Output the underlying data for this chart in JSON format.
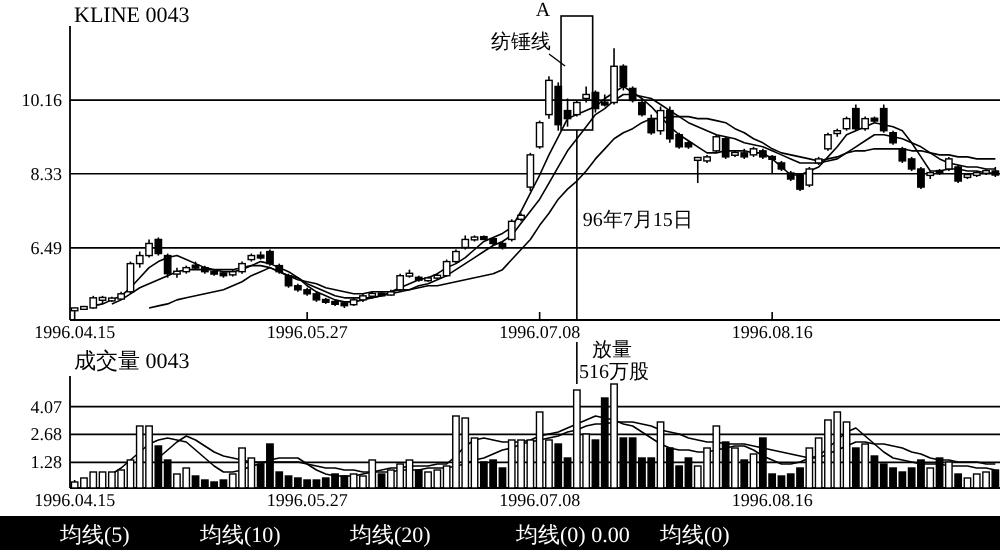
{
  "chart_data": [
    {
      "type": "candlestick",
      "title": "KLINE 0043",
      "categories": [
        "1996.04.15",
        null,
        null,
        null,
        null,
        null,
        null,
        null,
        null,
        null,
        null,
        null,
        null,
        null,
        null,
        null,
        null,
        null,
        null,
        null,
        null,
        null,
        null,
        null,
        null,
        "1996.05.27",
        null,
        null,
        null,
        null,
        null,
        null,
        null,
        null,
        null,
        null,
        null,
        null,
        null,
        null,
        null,
        null,
        null,
        null,
        null,
        null,
        null,
        null,
        null,
        null,
        "1996.07.08",
        null,
        null,
        null,
        null,
        null,
        null,
        null,
        null,
        null,
        null,
        null,
        null,
        null,
        null,
        null,
        null,
        null,
        null,
        null,
        null,
        null,
        null,
        null,
        null,
        "1996.08.16",
        null,
        null,
        null,
        null,
        null,
        null,
        null,
        null,
        null,
        null,
        null,
        null,
        null,
        null,
        null,
        null,
        null,
        null,
        null,
        null,
        null,
        null,
        null,
        null
      ],
      "ohlc": [
        [
          4.95,
          5.0,
          4.9,
          4.98
        ],
        [
          4.98,
          5.05,
          4.95,
          5.02
        ],
        [
          5.0,
          5.3,
          4.98,
          5.25
        ],
        [
          5.2,
          5.3,
          5.1,
          5.25
        ],
        [
          5.2,
          5.28,
          5.15,
          5.22
        ],
        [
          5.22,
          5.4,
          5.2,
          5.35
        ],
        [
          5.4,
          6.15,
          5.35,
          6.1
        ],
        [
          6.1,
          6.4,
          6.0,
          6.3
        ],
        [
          6.3,
          6.7,
          6.25,
          6.6
        ],
        [
          6.7,
          6.75,
          6.3,
          6.35
        ],
        [
          6.3,
          6.35,
          5.75,
          5.85
        ],
        [
          5.85,
          6.0,
          5.75,
          5.9
        ],
        [
          5.9,
          6.05,
          5.85,
          6.0
        ],
        [
          6.05,
          6.15,
          5.95,
          6.0
        ],
        [
          6.0,
          6.05,
          5.85,
          5.9
        ],
        [
          5.9,
          5.95,
          5.8,
          5.85
        ],
        [
          5.85,
          5.9,
          5.75,
          5.82
        ],
        [
          5.82,
          5.95,
          5.78,
          5.9
        ],
        [
          5.9,
          6.15,
          5.85,
          6.1
        ],
        [
          6.2,
          6.35,
          6.15,
          6.3
        ],
        [
          6.3,
          6.4,
          6.2,
          6.25
        ],
        [
          6.4,
          6.45,
          6.05,
          6.1
        ],
        [
          6.05,
          6.1,
          5.85,
          5.9
        ],
        [
          5.8,
          5.85,
          5.5,
          5.55
        ],
        [
          5.55,
          5.6,
          5.4,
          5.45
        ],
        [
          5.45,
          5.5,
          5.3,
          5.35
        ],
        [
          5.35,
          5.4,
          5.15,
          5.2
        ],
        [
          5.2,
          5.25,
          5.1,
          5.15
        ],
        [
          5.15,
          5.2,
          5.05,
          5.1
        ],
        [
          5.1,
          5.15,
          5.0,
          5.08
        ],
        [
          5.08,
          5.25,
          5.05,
          5.2
        ],
        [
          5.2,
          5.35,
          5.15,
          5.3
        ],
        [
          5.3,
          5.4,
          5.25,
          5.35
        ],
        [
          5.35,
          5.4,
          5.3,
          5.32
        ],
        [
          5.32,
          5.45,
          5.3,
          5.4
        ],
        [
          5.45,
          5.85,
          5.4,
          5.8
        ],
        [
          5.8,
          5.95,
          5.75,
          5.85
        ],
        [
          5.75,
          5.8,
          5.65,
          5.7
        ],
        [
          5.7,
          5.78,
          5.65,
          5.72
        ],
        [
          5.75,
          5.85,
          5.7,
          5.8
        ],
        [
          5.8,
          6.2,
          5.78,
          6.15
        ],
        [
          6.15,
          6.45,
          6.1,
          6.4
        ],
        [
          6.5,
          6.8,
          6.45,
          6.7
        ],
        [
          6.7,
          6.8,
          6.65,
          6.75
        ],
        [
          6.75,
          6.8,
          6.7,
          6.72
        ],
        [
          6.72,
          6.75,
          6.55,
          6.6
        ],
        [
          6.6,
          6.65,
          6.45,
          6.5
        ],
        [
          6.7,
          7.2,
          6.65,
          7.15
        ],
        [
          7.2,
          7.35,
          7.15,
          7.3
        ],
        [
          8.0,
          8.85,
          7.9,
          8.8
        ],
        [
          9.0,
          9.65,
          8.95,
          9.6
        ],
        [
          9.8,
          10.75,
          9.7,
          10.65
        ],
        [
          10.5,
          10.6,
          9.4,
          9.55
        ],
        [
          9.9,
          10.2,
          9.5,
          9.7
        ],
        [
          9.8,
          10.15,
          9.75,
          10.1
        ],
        [
          10.2,
          10.5,
          10.1,
          10.3
        ],
        [
          10.35,
          10.4,
          9.85,
          9.95
        ],
        [
          10.1,
          10.3,
          10.0,
          10.05
        ],
        [
          10.1,
          11.45,
          10.05,
          11.0
        ],
        [
          11.0,
          11.05,
          10.4,
          10.5
        ],
        [
          10.45,
          10.5,
          10.1,
          10.15
        ],
        [
          10.1,
          10.2,
          9.75,
          9.8
        ],
        [
          9.7,
          9.8,
          9.3,
          9.35
        ],
        [
          9.4,
          10.0,
          9.3,
          9.9
        ],
        [
          9.9,
          10.0,
          9.1,
          9.2
        ],
        [
          9.3,
          9.35,
          8.95,
          9.0
        ],
        [
          9.1,
          9.15,
          8.95,
          9.0
        ],
        [
          8.7,
          8.75,
          8.1,
          8.7
        ],
        [
          8.65,
          8.8,
          8.6,
          8.75
        ],
        [
          8.9,
          9.3,
          8.85,
          9.25
        ],
        [
          9.2,
          9.25,
          8.7,
          8.75
        ],
        [
          8.8,
          8.9,
          8.75,
          8.85
        ],
        [
          8.85,
          8.95,
          8.7,
          8.75
        ],
        [
          8.8,
          9.0,
          8.75,
          8.95
        ],
        [
          8.9,
          8.95,
          8.7,
          8.75
        ],
        [
          8.75,
          8.8,
          8.35,
          8.7
        ],
        [
          8.6,
          8.65,
          8.4,
          8.45
        ],
        [
          8.35,
          8.4,
          8.15,
          8.2
        ],
        [
          8.3,
          8.35,
          7.9,
          7.95
        ],
        [
          8.05,
          8.5,
          8.0,
          8.45
        ],
        [
          8.6,
          8.75,
          8.55,
          8.7
        ],
        [
          8.95,
          9.35,
          8.9,
          9.3
        ],
        [
          9.35,
          9.45,
          9.25,
          9.38
        ],
        [
          9.45,
          9.75,
          9.4,
          9.7
        ],
        [
          9.95,
          10.05,
          9.4,
          9.45
        ],
        [
          9.45,
          9.75,
          9.4,
          9.7
        ],
        [
          9.7,
          9.75,
          9.6,
          9.65
        ],
        [
          9.95,
          10.05,
          9.35,
          9.4
        ],
        [
          9.35,
          9.4,
          9.05,
          9.1
        ],
        [
          8.95,
          9.0,
          8.6,
          8.65
        ],
        [
          8.7,
          8.75,
          8.4,
          8.45
        ],
        [
          8.45,
          8.5,
          7.95,
          8.0
        ],
        [
          8.3,
          8.4,
          8.2,
          8.35
        ],
        [
          8.4,
          8.45,
          8.3,
          8.35
        ],
        [
          8.45,
          8.75,
          8.4,
          8.7
        ],
        [
          8.5,
          8.55,
          8.1,
          8.15
        ],
        [
          8.25,
          8.35,
          8.2,
          8.3
        ],
        [
          8.3,
          8.4,
          8.25,
          8.35
        ],
        [
          8.35,
          8.45,
          8.3,
          8.4
        ],
        [
          8.4,
          8.5,
          8.25,
          8.3
        ]
      ],
      "series": [
        {
          "type": "line",
          "color": "#000000",
          "values": [
            null,
            null,
            5.05,
            5.1,
            5.2,
            5.3,
            5.5,
            5.75,
            6.0,
            6.15,
            6.25,
            6.3,
            6.2,
            6.1,
            6.0,
            5.95,
            5.9,
            5.9,
            5.95,
            6.05,
            6.15,
            6.1,
            6.0,
            5.9,
            5.75,
            5.55,
            5.4,
            5.3,
            5.2,
            5.15,
            5.15,
            5.2,
            5.25,
            5.3,
            5.4,
            5.5,
            5.6,
            5.7,
            5.75,
            5.85,
            6.0,
            6.1,
            6.25,
            6.45,
            6.65,
            6.75,
            6.85,
            7.0,
            7.4,
            7.85,
            8.3,
            8.8,
            9.25,
            9.7,
            9.8,
            9.9,
            10.0,
            10.2,
            10.35,
            10.5,
            10.35,
            10.2,
            10.0,
            9.75,
            9.5,
            9.3,
            9.15,
            9.0,
            8.85,
            8.85,
            8.9,
            8.9,
            8.9,
            8.85,
            8.85,
            8.7,
            8.5,
            8.3,
            8.3,
            8.4,
            8.5,
            8.75,
            9.0,
            9.3,
            9.4,
            9.5,
            9.6,
            9.55,
            9.5,
            9.4,
            9.1,
            8.75,
            8.4,
            8.4,
            8.45,
            8.45,
            8.4,
            8.4,
            8.35,
            8.35
          ]
        },
        {
          "type": "line",
          "color": "#000000",
          "values": [
            null,
            null,
            null,
            null,
            5.1,
            5.2,
            5.35,
            5.5,
            5.6,
            5.7,
            5.8,
            5.9,
            5.95,
            5.95,
            5.95,
            5.95,
            5.95,
            5.95,
            6.0,
            6.05,
            6.05,
            6.0,
            5.9,
            5.8,
            5.75,
            5.6,
            5.5,
            5.4,
            5.3,
            5.25,
            5.25,
            5.25,
            5.25,
            5.3,
            5.35,
            5.4,
            5.45,
            5.55,
            5.6,
            5.7,
            5.8,
            5.95,
            6.1,
            6.25,
            6.4,
            6.55,
            6.65,
            6.8,
            7.1,
            7.4,
            7.7,
            8.1,
            8.5,
            8.9,
            9.2,
            9.5,
            9.8,
            9.95,
            10.15,
            10.3,
            10.3,
            10.25,
            10.2,
            10.05,
            9.9,
            9.75,
            9.6,
            9.5,
            9.4,
            9.3,
            9.25,
            9.2,
            9.1,
            9.05,
            9.0,
            8.9,
            8.8,
            8.7,
            8.6,
            8.6,
            8.6,
            8.65,
            8.7,
            8.85,
            9.0,
            9.15,
            9.3,
            9.3,
            9.25,
            9.2,
            9.1,
            9.0,
            8.85,
            8.7,
            8.6,
            8.55,
            8.5,
            8.5,
            8.45,
            8.45
          ]
        },
        {
          "type": "line",
          "color": "#000000",
          "values": [
            null,
            null,
            null,
            null,
            null,
            null,
            null,
            null,
            5.0,
            5.05,
            5.1,
            5.2,
            5.25,
            5.3,
            5.35,
            5.4,
            5.45,
            5.55,
            5.65,
            5.8,
            5.9,
            6.0,
            5.9,
            5.8,
            5.7,
            5.65,
            5.6,
            5.5,
            5.45,
            5.4,
            5.35,
            5.35,
            5.4,
            5.4,
            5.4,
            5.45,
            5.45,
            5.5,
            5.55,
            5.55,
            5.6,
            5.65,
            5.7,
            5.75,
            5.8,
            5.85,
            5.95,
            6.2,
            6.45,
            6.7,
            7.05,
            7.35,
            7.7,
            7.95,
            8.15,
            8.4,
            8.7,
            8.95,
            9.2,
            9.35,
            9.45,
            9.6,
            9.7,
            9.7,
            9.75,
            9.75,
            9.75,
            9.7,
            9.7,
            9.65,
            9.6,
            9.45,
            9.35,
            9.2,
            9.1,
            8.95,
            8.85,
            8.8,
            8.75,
            8.7,
            8.65,
            8.7,
            8.75,
            8.85,
            8.9,
            8.9,
            8.95,
            8.95,
            8.95,
            8.95,
            8.9,
            8.9,
            8.85,
            8.8,
            8.8,
            8.75,
            8.75,
            8.7,
            8.7,
            8.7
          ]
        }
      ],
      "ylim": [
        4.7,
        12.0
      ],
      "yticks": [
        6.49,
        8.33,
        10.16
      ],
      "grid": "y",
      "annotations": [
        "A",
        "纺锤线",
        "96年7月15日"
      ]
    },
    {
      "type": "bar",
      "title": "成交量 0043",
      "categories": [
        "1996.04.15",
        null,
        null,
        null,
        null,
        null,
        null,
        null,
        null,
        null,
        null,
        null,
        null,
        null,
        null,
        null,
        null,
        null,
        null,
        null,
        null,
        null,
        null,
        null,
        null,
        "1996.05.27",
        null,
        null,
        null,
        null,
        null,
        null,
        null,
        null,
        null,
        null,
        null,
        null,
        null,
        null,
        null,
        null,
        null,
        null,
        null,
        null,
        null,
        null,
        null,
        null,
        "1996.07.08",
        null,
        null,
        null,
        null,
        null,
        null,
        null,
        null,
        null,
        null,
        null,
        null,
        null,
        null,
        null,
        null,
        null,
        null,
        null,
        null,
        null,
        null,
        null,
        null,
        "1996.08.16",
        null,
        null,
        null,
        null,
        null,
        null,
        null,
        null,
        null,
        null,
        null,
        null,
        null,
        null,
        null,
        null,
        null,
        null,
        null,
        null,
        null,
        null,
        null,
        null
      ],
      "values": [
        0.3,
        0.5,
        0.8,
        0.8,
        0.8,
        0.9,
        1.4,
        3.1,
        3.1,
        2.1,
        1.4,
        0.7,
        1.0,
        0.6,
        0.4,
        0.3,
        0.4,
        0.7,
        2.0,
        1.5,
        1.2,
        2.2,
        0.8,
        0.6,
        0.5,
        0.4,
        0.4,
        0.5,
        0.7,
        0.6,
        0.7,
        0.6,
        1.4,
        0.7,
        0.9,
        1.2,
        1.4,
        0.9,
        0.8,
        0.9,
        1.1,
        3.6,
        3.5,
        2.5,
        1.3,
        1.4,
        1.0,
        2.4,
        2.4,
        2.4,
        3.8,
        2.4,
        2.2,
        1.5,
        4.9,
        2.7,
        2.4,
        4.5,
        5.2,
        2.5,
        2.5,
        1.5,
        1.5,
        3.3,
        2.0,
        1.1,
        1.5,
        1.1,
        2.0,
        3.1,
        2.3,
        2.0,
        1.4,
        1.7,
        2.5,
        0.7,
        0.6,
        0.7,
        1.0,
        2.0,
        2.5,
        3.4,
        3.8,
        3.3,
        2.0,
        2.2,
        1.6,
        1.2,
        1.0,
        0.8,
        1.0,
        1.4,
        1.0,
        1.5,
        1.3,
        0.7,
        0.5,
        0.7,
        0.8,
        0.9
      ],
      "colors": [
        "#ffffff",
        "#ffffff",
        "#ffffff",
        "#ffffff",
        "#ffffff",
        "#ffffff",
        "#ffffff",
        "#ffffff",
        "#ffffff",
        "#000000",
        "#000000",
        "#ffffff",
        "#ffffff",
        "#000000",
        "#000000",
        "#000000",
        "#000000",
        "#ffffff",
        "#ffffff",
        "#ffffff",
        "#000000",
        "#000000",
        "#000000",
        "#000000",
        "#000000",
        "#000000",
        "#000000",
        "#000000",
        "#000000",
        "#000000",
        "#ffffff",
        "#ffffff",
        "#ffffff",
        "#000000",
        "#ffffff",
        "#ffffff",
        "#ffffff",
        "#000000",
        "#ffffff",
        "#ffffff",
        "#ffffff",
        "#ffffff",
        "#ffffff",
        "#ffffff",
        "#000000",
        "#000000",
        "#000000",
        "#ffffff",
        "#ffffff",
        "#ffffff",
        "#ffffff",
        "#ffffff",
        "#000000",
        "#000000",
        "#ffffff",
        "#ffffff",
        "#000000",
        "#000000",
        "#ffffff",
        "#000000",
        "#000000",
        "#000000",
        "#000000",
        "#ffffff",
        "#000000",
        "#000000",
        "#000000",
        "#ffffff",
        "#ffffff",
        "#ffffff",
        "#000000",
        "#ffffff",
        "#000000",
        "#ffffff",
        "#000000",
        "#000000",
        "#000000",
        "#000000",
        "#000000",
        "#ffffff",
        "#ffffff",
        "#ffffff",
        "#ffffff",
        "#ffffff",
        "#000000",
        "#ffffff",
        "#000000",
        "#000000",
        "#000000",
        "#000000",
        "#000000",
        "#000000",
        "#ffffff",
        "#000000",
        "#ffffff",
        "#000000",
        "#ffffff",
        "#ffffff",
        "#ffffff",
        "#000000"
      ],
      "series": [
        {
          "type": "line",
          "color": "#000000",
          "values": [
            null,
            null,
            null,
            null,
            0.7,
            1.0,
            1.4,
            1.8,
            2.2,
            2.4,
            2.5,
            2.4,
            2.3,
            1.9,
            1.5,
            1.1,
            0.8,
            0.8,
            0.9,
            1.1,
            1.2,
            1.4,
            1.5,
            1.5,
            1.5,
            1.2,
            0.9,
            0.7,
            0.6,
            0.6,
            0.6,
            0.7,
            0.8,
            0.9,
            1.0,
            1.0,
            1.1,
            1.1,
            1.1,
            1.2,
            1.2,
            1.6,
            2.1,
            2.4,
            2.5,
            2.4,
            2.3,
            2.3,
            2.3,
            2.4,
            2.6,
            2.7,
            2.8,
            3.0,
            3.2,
            3.4,
            3.6,
            3.5,
            3.4,
            3.2,
            3.1,
            2.8,
            2.5,
            2.2,
            2.0,
            1.9,
            1.9,
            1.8,
            1.8,
            1.9,
            2.0,
            2.1,
            2.1,
            1.9,
            1.6,
            1.4,
            1.2,
            1.2,
            1.3,
            1.5,
            1.6,
            2.0,
            2.4,
            2.8,
            3.0,
            2.6,
            2.2,
            1.8,
            1.5,
            1.4,
            1.3,
            1.2,
            1.2,
            1.2,
            1.1,
            1.1,
            1.1,
            1.0,
            1.0,
            0.9
          ]
        },
        {
          "type": "line",
          "color": "#000000",
          "values": [
            null,
            null,
            null,
            null,
            null,
            null,
            null,
            null,
            null,
            1.5,
            1.9,
            2.3,
            2.6,
            2.4,
            2.1,
            1.8,
            1.6,
            1.5,
            1.4,
            1.3,
            1.3,
            1.3,
            1.3,
            1.3,
            1.3,
            1.2,
            1.1,
            1.0,
            1.0,
            0.9,
            0.9,
            0.8,
            0.8,
            0.8,
            0.8,
            0.9,
            0.9,
            0.9,
            1.0,
            1.0,
            1.0,
            1.1,
            1.2,
            1.4,
            1.5,
            1.7,
            1.9,
            2.0,
            2.2,
            2.3,
            2.4,
            2.5,
            2.6,
            2.8,
            2.9,
            3.1,
            3.2,
            3.2,
            3.3,
            3.3,
            3.3,
            3.2,
            3.1,
            2.9,
            2.8,
            2.7,
            2.5,
            2.4,
            2.3,
            2.3,
            2.2,
            2.2,
            2.2,
            2.1,
            2.0,
            1.9,
            1.8,
            1.7,
            1.6,
            1.5,
            1.5,
            1.7,
            1.9,
            2.1,
            2.3,
            2.3,
            2.2,
            2.2,
            2.1,
            2.0,
            1.8,
            1.7,
            1.5,
            1.4,
            1.4,
            1.3,
            1.3,
            1.3,
            1.2,
            1.2
          ]
        }
      ],
      "ylim": [
        0,
        5.6
      ],
      "yticks": [
        1.28,
        2.68,
        4.07
      ],
      "grid": "y",
      "annotations": [
        "放量 516万股",
        "均线(5)",
        "均线(10)",
        "均线(20)",
        "均线(0) 0.00",
        "均线(0)"
      ]
    }
  ]
}
